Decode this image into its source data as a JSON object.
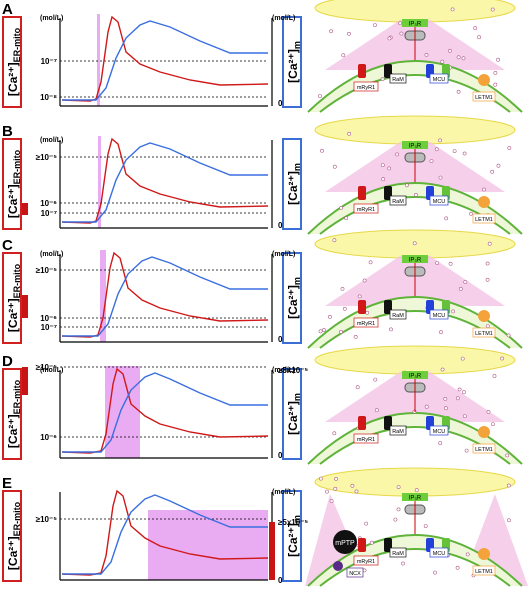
{
  "panels": [
    {
      "label": "A",
      "left_unit": "(mol/L)",
      "left_ticks": [
        "10⁻⁷",
        "10⁻⁸"
      ],
      "right_unit": "(mol/L)",
      "right_ticks": [
        "0"
      ]
    },
    {
      "label": "B",
      "left_unit": "(mol/L)",
      "left_ticks": [
        "≥10⁻⁵",
        "10⁻⁶",
        "10⁻⁷"
      ],
      "right_ticks": [
        "0"
      ]
    },
    {
      "label": "C",
      "left_unit": "(mol/L)",
      "left_ticks": [
        "≥10⁻⁵",
        "10⁻⁶",
        "10⁻⁷"
      ],
      "right_unit": "(mol/L)",
      "right_ticks": [
        "0"
      ]
    },
    {
      "label": "D",
      "left_unit": "(mol/L)",
      "left_ticks": [
        "≥10⁻⁵",
        "10⁻⁶"
      ],
      "right_unit": "(mol/L)",
      "right_ticks": [
        "≥5x10⁻⁵",
        "0"
      ]
    },
    {
      "label": "E",
      "left_ticks": [
        "≥10⁻⁵"
      ],
      "right_unit": "(mol/L)",
      "right_ticks": [
        "≥5x10⁻⁵",
        "0"
      ]
    }
  ],
  "left_axis": {
    "main": "[Ca²⁺]",
    "sub": "ER-mito"
  },
  "right_axis": {
    "main": "[Ca²⁺]",
    "sub": "m"
  },
  "diagram_labels": {
    "ip3r": "IP₃R",
    "ram": "RaM",
    "mcu": "MCU",
    "letm1": "LETM1",
    "ryr": "mRyR1",
    "mptp": "mPTP",
    "ncx": "NCX"
  }
}
